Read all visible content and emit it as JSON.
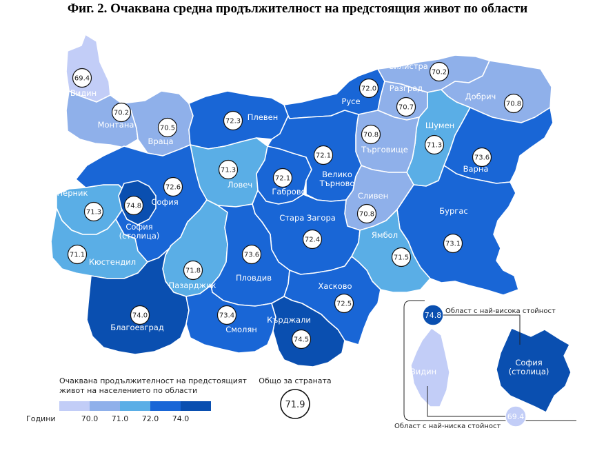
{
  "title": "Фиг. 2. Очаквана средна продължителност на предстоящия живот по области",
  "colors": {
    "lt70": "#c2cdf7",
    "70_71": "#8fb0ea",
    "71_72": "#5aaee6",
    "72_74": "#1966d6",
    "ge74": "#0a4fb0",
    "outline": "#ffffff"
  },
  "regions": [
    {
      "name": "Видин",
      "value": "69.4"
    },
    {
      "name": "Монтана",
      "value": "70.2"
    },
    {
      "name": "Враца",
      "value": "70.5"
    },
    {
      "name": "Плевен",
      "value": "72.3"
    },
    {
      "name": "Русе",
      "value": "72.0"
    },
    {
      "name": "Силистра",
      "value": "70.2"
    },
    {
      "name": "Разград",
      "value": "70.7"
    },
    {
      "name": "Добрич",
      "value": "70.8"
    },
    {
      "name": "Шумен",
      "value": "71.3"
    },
    {
      "name": "Търговище",
      "value": "70.8"
    },
    {
      "name": "Варна",
      "value": "73.6"
    },
    {
      "name": "Ловеч",
      "value": "71.3"
    },
    {
      "name": "Габрово",
      "value": "72.1"
    },
    {
      "name": "Велико Търново",
      "value": "72.1"
    },
    {
      "name": "Перник",
      "value": "71.3"
    },
    {
      "name": "София",
      "value": "72.6"
    },
    {
      "name": "София (столица)",
      "value": "74.8"
    },
    {
      "name": "Кюстендил",
      "value": "71.1"
    },
    {
      "name": "Сливен",
      "value": "70.8"
    },
    {
      "name": "Бургас",
      "value": "73.1"
    },
    {
      "name": "Стара Загора",
      "value": "72.4"
    },
    {
      "name": "Ямбол",
      "value": "71.5"
    },
    {
      "name": "Пазарджик",
      "value": "71.8"
    },
    {
      "name": "Пловдив",
      "value": "73.6"
    },
    {
      "name": "Хасково",
      "value": "72.5"
    },
    {
      "name": "Благоевград",
      "value": "74.0"
    },
    {
      "name": "Смолян",
      "value": "73.4"
    },
    {
      "name": "Кърджали",
      "value": "74.5"
    }
  ],
  "legend": {
    "title_line1": "Очаквана продължителност на предстоящият",
    "title_line2": "живот на населението по области",
    "unit_label": "Години",
    "ticks": [
      "70.0",
      "71.0",
      "72.0",
      "74.0"
    ]
  },
  "country_total": {
    "label": "Общо за страната",
    "value": "71.9"
  },
  "inset": {
    "highest_label": "Област с най-висока стойност",
    "highest_value": "74.8",
    "highest_region_line1": "София",
    "highest_region_line2": "(столица)",
    "lowest_label": "Област с най-ниска стойност",
    "lowest_value": "69.4",
    "lowest_region": "Видин"
  }
}
